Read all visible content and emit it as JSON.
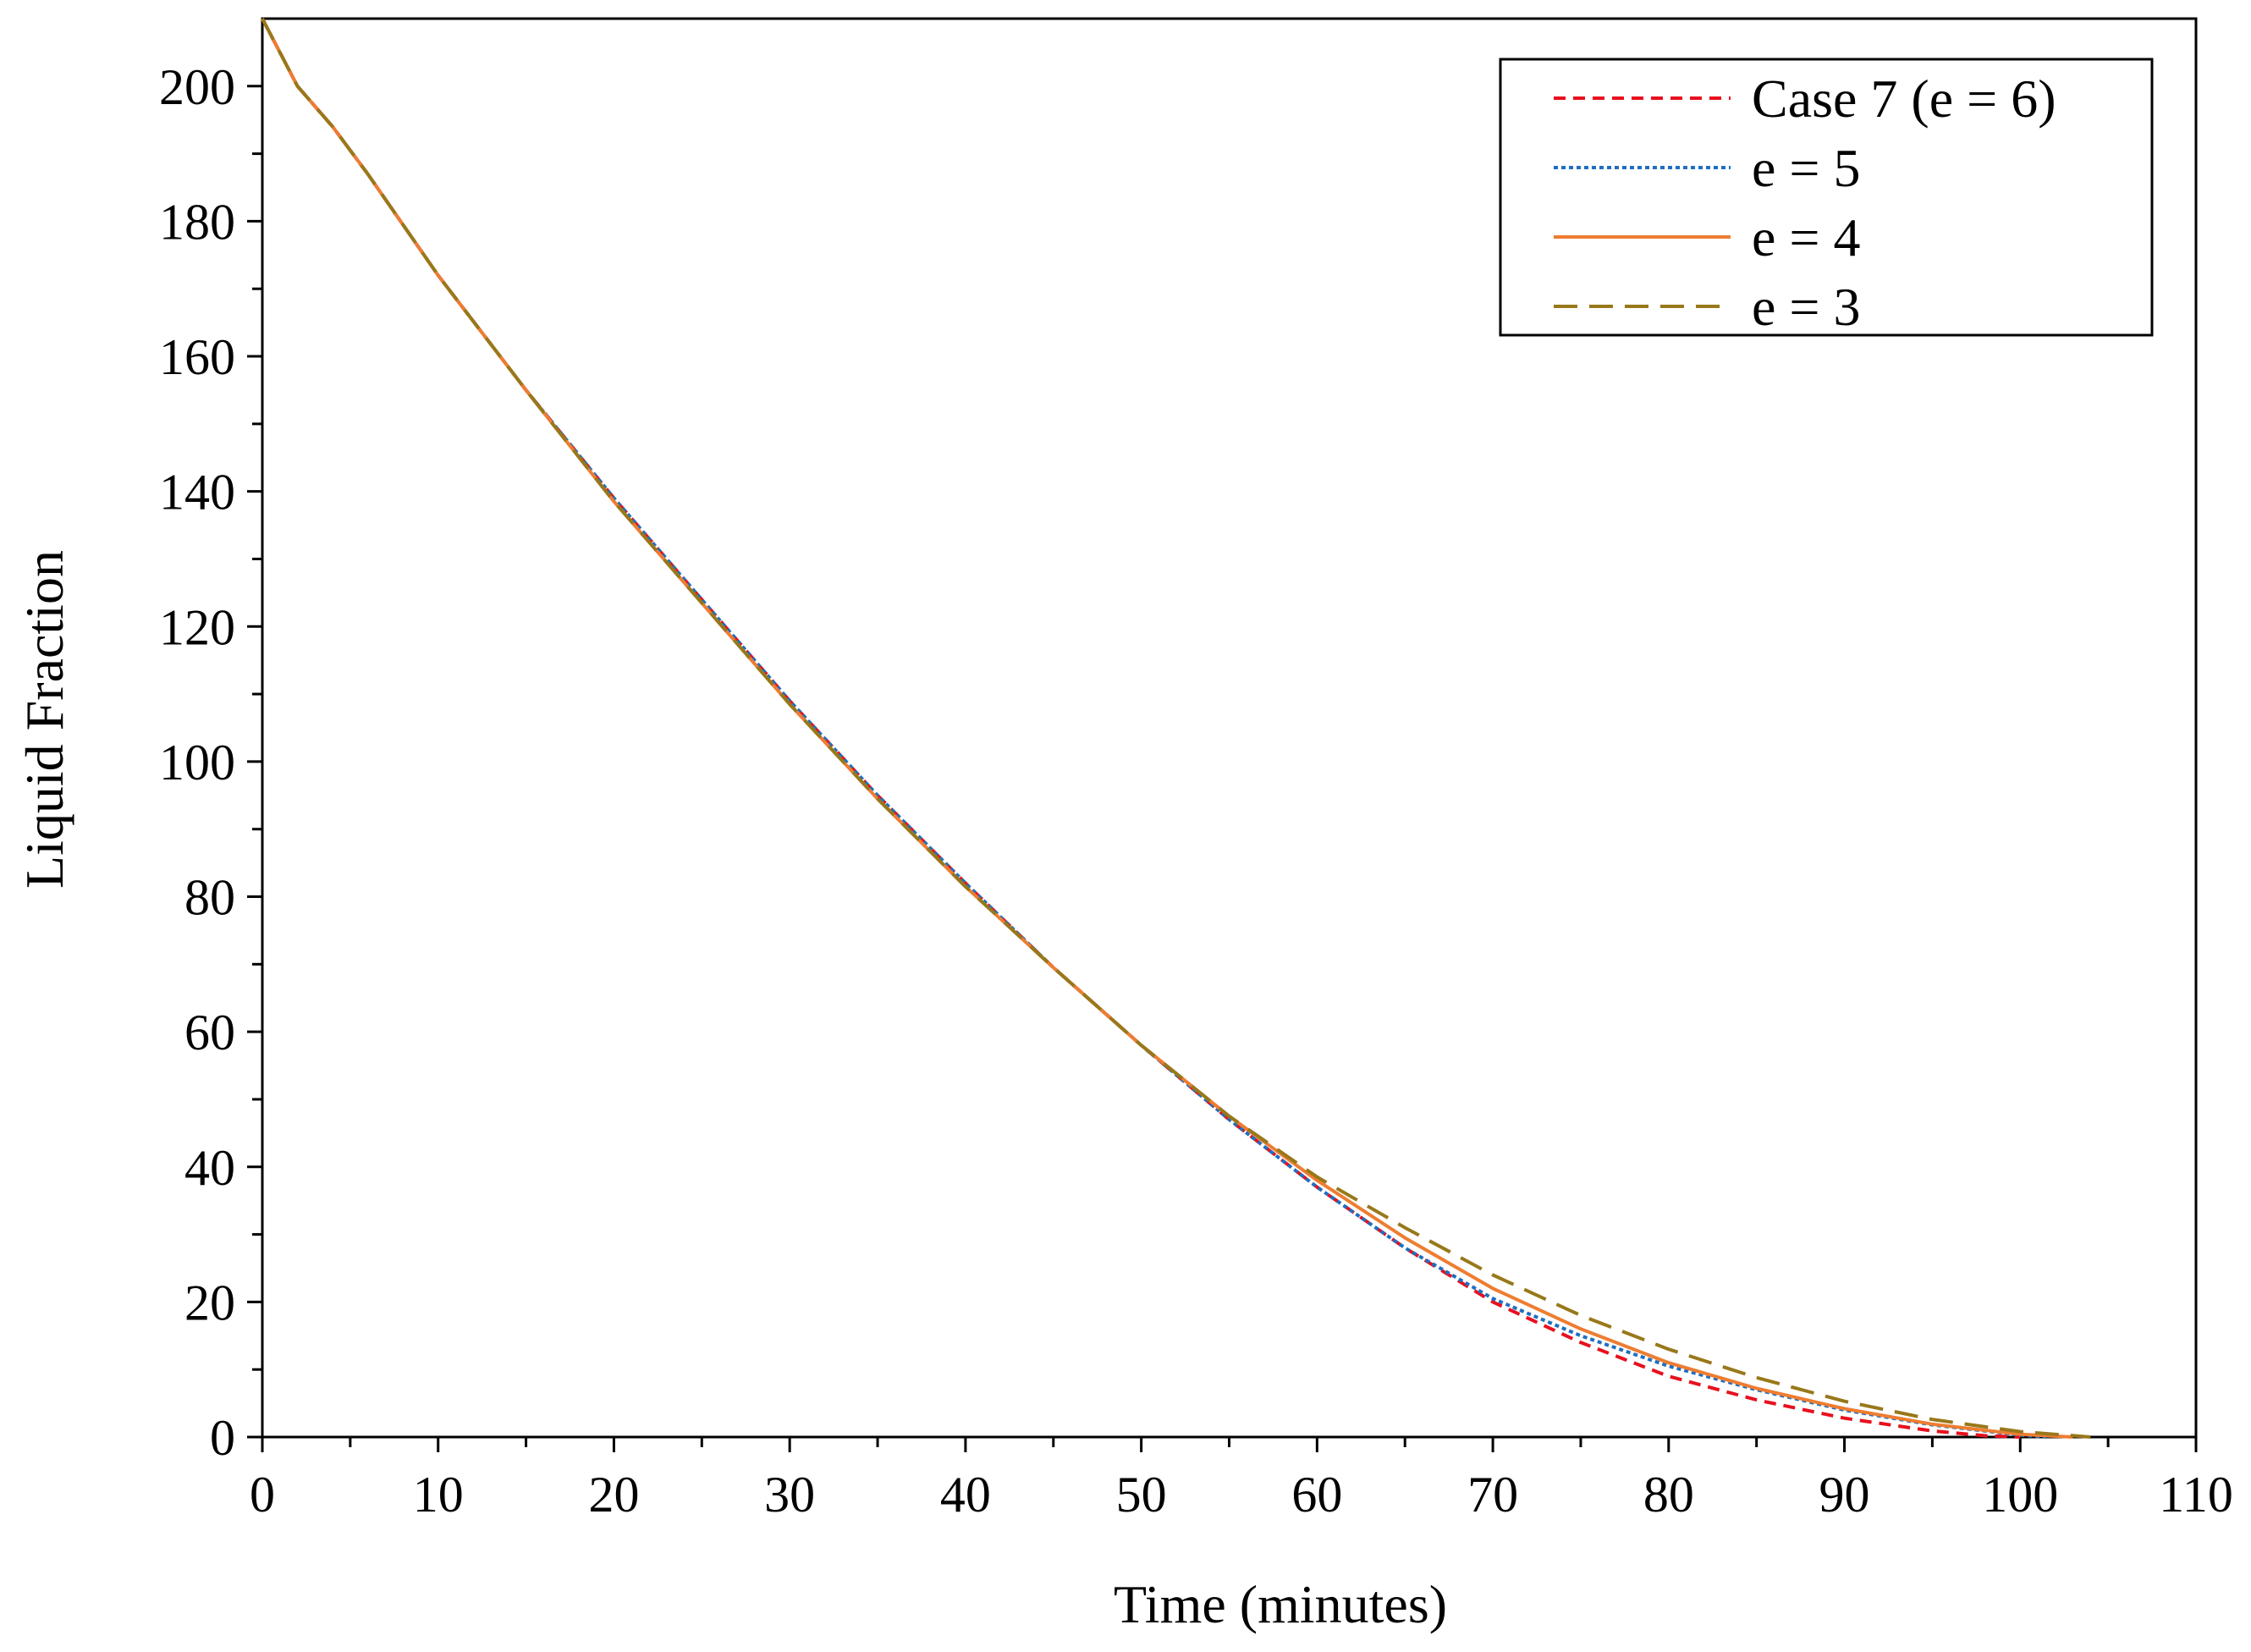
{
  "chart_data": {
    "type": "line",
    "title": "",
    "xlabel": "Time (minutes)",
    "ylabel": "Liquid Fraction",
    "xlim": [
      0,
      110
    ],
    "ylim": [
      0,
      210
    ],
    "x_ticks": [
      "0",
      "10",
      "20",
      "30",
      "40",
      "50",
      "60",
      "70",
      "80",
      "90",
      "100",
      "110"
    ],
    "y_ticks": [
      "0",
      "20",
      "40",
      "60",
      "80",
      "100",
      "120",
      "140",
      "160",
      "180",
      "200"
    ],
    "x_minor_step": 5,
    "y_minor_step": 10,
    "grid": false,
    "legend_position": "top-right",
    "series": [
      {
        "name": "Case 7 (e = 6)",
        "color": "#e8101e",
        "style": "short-dash",
        "x": [
          0,
          2,
          4,
          6,
          10,
          15,
          20,
          25,
          30,
          35,
          40,
          45,
          50,
          55,
          60,
          65,
          70,
          75,
          80,
          85,
          90,
          95,
          98,
          100
        ],
        "y": [
          210,
          200,
          194,
          187,
          172,
          155,
          139,
          124,
          109,
          95,
          82,
          69.5,
          58,
          47,
          37,
          28,
          20,
          14,
          9,
          5.5,
          2.8,
          0.9,
          0.2,
          0
        ]
      },
      {
        "name": "e = 5",
        "color": "#1f6fc0",
        "style": "dotted",
        "x": [
          0,
          2,
          4,
          6,
          10,
          15,
          20,
          25,
          30,
          35,
          40,
          45,
          50,
          55,
          60,
          65,
          70,
          75,
          80,
          85,
          90,
          95,
          100,
          101.5
        ],
        "y": [
          210,
          200,
          194,
          187,
          172,
          155,
          139,
          124,
          109,
          95,
          82,
          69.5,
          58,
          47,
          37,
          28,
          20.5,
          15,
          10.5,
          7,
          4,
          1.8,
          0.3,
          0
        ]
      },
      {
        "name": "e = 4",
        "color": "#ee7d31",
        "style": "solid",
        "x": [
          0,
          2,
          4,
          6,
          10,
          15,
          20,
          25,
          30,
          35,
          40,
          45,
          50,
          55,
          60,
          65,
          70,
          75,
          80,
          85,
          90,
          95,
          100,
          103
        ],
        "y": [
          210,
          200,
          194,
          187,
          172,
          155,
          138.5,
          123.5,
          108.5,
          94.5,
          81.5,
          69.5,
          58,
          47.5,
          38,
          29.5,
          22,
          16,
          11,
          7.2,
          4.2,
          1.9,
          0.4,
          0
        ]
      },
      {
        "name": "e = 3",
        "color": "#98781a",
        "style": "long-dash",
        "x": [
          0,
          2,
          4,
          6,
          10,
          15,
          20,
          25,
          30,
          35,
          40,
          45,
          50,
          55,
          60,
          65,
          70,
          75,
          80,
          85,
          90,
          95,
          100,
          104
        ],
        "y": [
          210,
          200,
          194,
          187,
          172,
          155,
          138.5,
          123.5,
          108.5,
          94.5,
          81.5,
          69.5,
          58,
          47.5,
          38.5,
          31,
          24,
          18,
          13,
          8.8,
          5.3,
          2.6,
          0.8,
          0
        ]
      }
    ]
  }
}
